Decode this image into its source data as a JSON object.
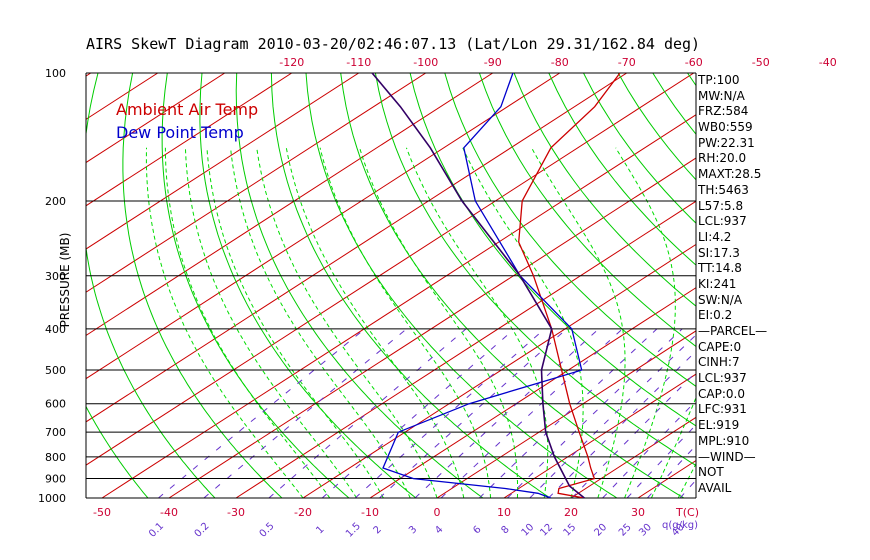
{
  "chart_data": {
    "type": "line",
    "title": "AIRS SkewT Diagram 2010-03-20/02:46:07.13 (Lat/Lon 29.31/162.84 deg)",
    "ylabel": "PRESSURE (MB)",
    "yscale": "log",
    "ylim": [
      1000,
      100
    ],
    "pressure_ticks": [
      100,
      200,
      300,
      400,
      500,
      600,
      700,
      800,
      900,
      1000
    ],
    "pressure_tick_labels": [
      "100",
      "200",
      "300",
      "400",
      "500",
      "600",
      "700",
      "800",
      "900",
      "1000"
    ],
    "bottom_temp_axis": {
      "ticks": [
        -50,
        -40,
        -30,
        -20,
        -10,
        0,
        10,
        20,
        30
      ],
      "tick_labels": [
        "-50",
        "-40",
        "-30",
        "-20",
        "-10",
        "0",
        "10",
        "20",
        "30"
      ],
      "unit_label": "T(C)"
    },
    "top_temp_axis": {
      "ticks": [
        -120,
        -110,
        -100,
        -90,
        -80,
        -70,
        -60,
        -50,
        -40
      ],
      "tick_labels": [
        "-120",
        "-110",
        "-100",
        "-90",
        "-80",
        "-70",
        "-60",
        "-50",
        "-40"
      ]
    },
    "mixing_ratio_axis": {
      "values": [
        0.1,
        0.2,
        0.5,
        1,
        1.5,
        2,
        3,
        4,
        6,
        8,
        10,
        12,
        15,
        20,
        25,
        30,
        40
      ],
      "tick_labels": [
        "0.1",
        "0.2",
        "0.5",
        "1",
        "1.5",
        "2",
        "3",
        "4",
        "6",
        "8",
        "10",
        "12",
        "15",
        "20",
        "25",
        "30",
        "40"
      ],
      "unit_label": "q(g/kg)"
    },
    "legend": [
      "Ambient Air Temp",
      "Dew Point Temp"
    ],
    "series": [
      {
        "name": "Ambient Air Temp",
        "color": "#cc0000",
        "points": [
          {
            "p": 1000,
            "t": 22
          },
          {
            "p": 975,
            "t": 17
          },
          {
            "p": 950,
            "t": 16
          },
          {
            "p": 900,
            "t": 19
          },
          {
            "p": 850,
            "t": 16
          },
          {
            "p": 800,
            "t": 13
          },
          {
            "p": 700,
            "t": 6
          },
          {
            "p": 600,
            "t": -2
          },
          {
            "p": 500,
            "t": -11
          },
          {
            "p": 400,
            "t": -22
          },
          {
            "p": 300,
            "t": -37
          },
          {
            "p": 250,
            "t": -47
          },
          {
            "p": 200,
            "t": -56
          },
          {
            "p": 150,
            "t": -64
          },
          {
            "p": 120,
            "t": -67
          },
          {
            "p": 100,
            "t": -71
          }
        ]
      },
      {
        "name": "Dew Point Temp",
        "color": "#0000cc",
        "points": [
          {
            "p": 1000,
            "t": 17
          },
          {
            "p": 975,
            "t": 14
          },
          {
            "p": 950,
            "t": 8
          },
          {
            "p": 900,
            "t": -8
          },
          {
            "p": 850,
            "t": -15
          },
          {
            "p": 700,
            "t": -21
          },
          {
            "p": 600,
            "t": -17
          },
          {
            "p": 500,
            "t": -8
          },
          {
            "p": 400,
            "t": -19
          },
          {
            "p": 300,
            "t": -39
          },
          {
            "p": 200,
            "t": -63
          },
          {
            "p": 150,
            "t": -77
          },
          {
            "p": 120,
            "t": -81
          },
          {
            "p": 100,
            "t": -87
          }
        ]
      },
      {
        "name": "Parcel",
        "color": "#330066",
        "points": [
          {
            "p": 1000,
            "t": 22
          },
          {
            "p": 937,
            "t": 17
          },
          {
            "p": 800,
            "t": 8
          },
          {
            "p": 700,
            "t": 1
          },
          {
            "p": 600,
            "t": -6
          },
          {
            "p": 500,
            "t": -14
          },
          {
            "p": 400,
            "t": -22
          },
          {
            "p": 300,
            "t": -39
          },
          {
            "p": 200,
            "t": -65
          },
          {
            "p": 150,
            "t": -82
          },
          {
            "p": 120,
            "t": -96
          },
          {
            "p": 100,
            "t": -108
          }
        ]
      }
    ],
    "stats": [
      "TP:100",
      "MW:N/A",
      "FRZ:584",
      "WB0:559",
      "PW:22.31",
      "RH:20.0",
      "MAXT:28.5",
      "TH:5463",
      "L57:5.8",
      "LCL:937",
      "LI:4.2",
      "SI:17.3",
      "TT:14.8",
      "KI:241",
      "SW:N/A",
      "EI:0.2",
      "—PARCEL—",
      "CAPE:0",
      "CINH:7",
      "LCL:937",
      "CAP:0.0",
      "LFC:931",
      "EL:919",
      "MPL:910",
      "—WIND—",
      "NOT",
      "AVAIL"
    ]
  },
  "colors": {
    "dry_adiabat": "#00cc00",
    "moist_adiabat": "#00dd00",
    "isotherm": "#cc0000",
    "mixing_ratio": "#6633cc",
    "isobar": "#000000",
    "axis_label": "#cc0033",
    "air": "#cc0000",
    "dew": "#0000cc",
    "parcel": "#330066"
  }
}
